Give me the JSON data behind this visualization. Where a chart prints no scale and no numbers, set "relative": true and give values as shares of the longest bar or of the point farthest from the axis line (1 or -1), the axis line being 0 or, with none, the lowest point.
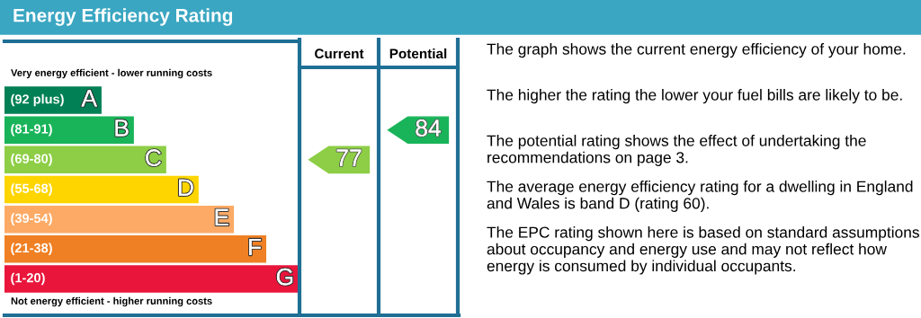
{
  "chart_data": [
    {
      "type": "bar",
      "orientation": "horizontal",
      "relative": true,
      "title": "Energy Efficiency Rating",
      "categories": [
        "A",
        "B",
        "C",
        "D",
        "E",
        "F",
        "G"
      ],
      "values": [
        0.33,
        0.44,
        0.55,
        0.66,
        0.78,
        0.89,
        1.0
      ],
      "colors": [
        "#008054",
        "#19b459",
        "#8dce46",
        "#ffd500",
        "#fcaa65",
        "#ef8023",
        "#e9153b"
      ],
      "annotations": [
        "Very energy efficient - lower running costs",
        "Not energy efficient - higher running costs",
        "Current",
        "Potential",
        "77",
        "84",
        "(92 plus)",
        "(81-91)",
        "(69-80)",
        "(55-68)",
        "(39-54)",
        "(21-38)",
        "(1-20)"
      ]
    },
    {
      "type": "other",
      "annotations": [
        "The graph shows the current energy efficiency of your home.",
        "The higher the rating the lower your fuel bills are likely to be.",
        "The potential rating shows the effect of undertaking the recommendations on page 3.",
        "The average energy efficiency rating for a dwelling in England and Wales is band D (rating 60).",
        "The EPC rating shown here is based on standard assumptions about occupancy and energy use and may not reflect how energy is consumed by individual occupants."
      ]
    }
  ]
}
